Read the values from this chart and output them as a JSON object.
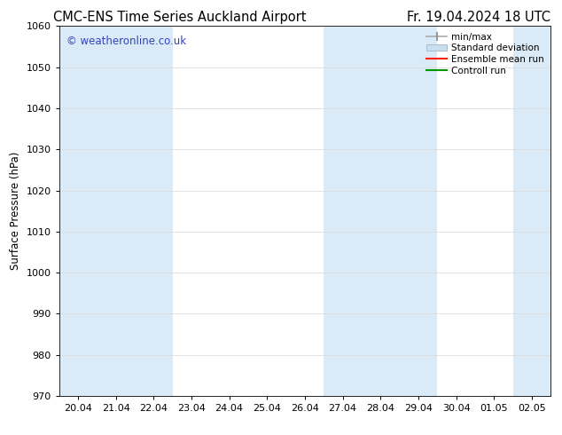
{
  "title_left": "CMC-ENS Time Series Auckland Airport",
  "title_right": "Fr. 19.04.2024 18 UTC",
  "ylabel": "Surface Pressure (hPa)",
  "ylim": [
    970,
    1060
  ],
  "yticks": [
    970,
    980,
    990,
    1000,
    1010,
    1020,
    1030,
    1040,
    1050,
    1060
  ],
  "x_labels": [
    "20.04",
    "21.04",
    "22.04",
    "23.04",
    "24.04",
    "25.04",
    "26.04",
    "27.04",
    "28.04",
    "29.04",
    "30.04",
    "01.05",
    "02.05"
  ],
  "watermark": "© weatheronline.co.uk",
  "watermark_color": "#3344bb",
  "shaded_indices": [
    0,
    1,
    2,
    7,
    8,
    9,
    12
  ],
  "shade_color": "#daeaf7",
  "legend_entries": [
    {
      "label": "min/max",
      "style": "minmax"
    },
    {
      "label": "Standard deviation",
      "style": "stddev"
    },
    {
      "label": "Ensemble mean run",
      "color": "#ff2200",
      "style": "line"
    },
    {
      "label": "Controll run",
      "color": "#009900",
      "style": "line"
    }
  ],
  "background_color": "#ffffff",
  "title_fontsize": 10.5,
  "axis_fontsize": 8.5,
  "tick_fontsize": 8
}
